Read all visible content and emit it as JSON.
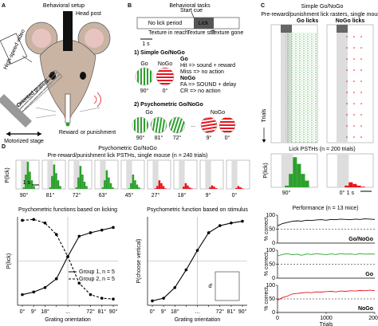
{
  "panel_a": {
    "label": "A",
    "title": "Behavioral setup",
    "head_post": "Head post",
    "video": "High-speed video",
    "grating": "Oriented grating, 90°",
    "stage": "Motorized stage",
    "reward": "Reward",
    "or": "or",
    "punishment": "punishment"
  },
  "panel_b": {
    "label": "B",
    "title": "Behavioral tasks",
    "start_cue": "Start cue",
    "no_lick": "No lick period",
    "lick": "Lick",
    "texture_reach": "Texture in reach",
    "texture_still": "Texture still",
    "texture_gone": "Texture gone",
    "scale": "1 s",
    "task1": "1) Simple Go/NoGo",
    "go": "Go",
    "nogo": "NoGo",
    "hit": "Hit => sound + reward",
    "miss": "Miss => no action",
    "fa": "FA => SOUND + delay",
    "cr": "CR => no action",
    "go_angle": "90°",
    "nogo_angle": "0°",
    "task2": "2) Psychometric Go/NoGo",
    "task2_go_angles": [
      "90°",
      "81°",
      "72°"
    ],
    "ellipsis": "...",
    "task2_nogo_angles": [
      "9°",
      "0°"
    ]
  },
  "panel_c": {
    "label": "C",
    "title": "Simple Go/NoGo",
    "subtitle": "Pre-reward/punishment lick rasters, single mouse",
    "go_licks": "Go licks",
    "nogo_licks": "NoGo licks",
    "trials": "Trials",
    "psth_title": "Lick PSTHs (n = 200 trials)",
    "psth_ylabel": "P(lick)",
    "go_angle": "90°",
    "nogo_angle": "0°",
    "scale": "1 s",
    "psth_ylim": [
      0,
      1
    ],
    "psths": [
      {
        "color": "#2ca02c",
        "values": [
          0,
          0,
          0.05,
          0.4,
          0.9,
          0.7,
          0.4,
          0.2
        ]
      },
      {
        "color": "#e8141c",
        "values": [
          0,
          0,
          0,
          0.05,
          0.15,
          0.1,
          0.05,
          0.02
        ]
      }
    ],
    "performance_title": "Performance (n = 13 mice)"
  },
  "panel_d": {
    "label": "D",
    "title": "Psychometric Go/NoGo",
    "subtitle": "Pre-reward/punishment lick PSTHs, single mouse (n = 240 trials)",
    "ylabel": "P(lick)",
    "scale": "1 s",
    "psth_ylim": [
      0,
      1
    ],
    "psths": [
      {
        "angle": "90°",
        "color": "#2ca02c",
        "values": [
          0,
          0,
          0.05,
          0.5,
          0.95,
          0.6,
          0.3,
          0.1
        ]
      },
      {
        "angle": "81°",
        "color": "#2ca02c",
        "values": [
          0,
          0,
          0.05,
          0.45,
          0.85,
          0.55,
          0.3,
          0.1
        ]
      },
      {
        "angle": "72°",
        "color": "#2ca02c",
        "values": [
          0,
          0,
          0.05,
          0.4,
          0.8,
          0.5,
          0.25,
          0.1
        ]
      },
      {
        "angle": "63°",
        "color": "#2ca02c",
        "values": [
          0,
          0,
          0.05,
          0.3,
          0.65,
          0.4,
          0.2,
          0.05
        ]
      },
      {
        "angle": "45°",
        "color": "#2ca02c",
        "values": [
          0,
          0,
          0.02,
          0.2,
          0.5,
          0.3,
          0.15,
          0.05
        ]
      },
      {
        "angle": "27°",
        "color": "#e8141c",
        "values": [
          0,
          0,
          0.02,
          0.1,
          0.3,
          0.2,
          0.1,
          0.02
        ]
      },
      {
        "angle": "18°",
        "color": "#e8141c",
        "values": [
          0,
          0,
          0,
          0.08,
          0.2,
          0.12,
          0.05,
          0.02
        ]
      },
      {
        "angle": "9°",
        "color": "#e8141c",
        "values": [
          0,
          0,
          0,
          0.05,
          0.12,
          0.08,
          0.03,
          0
        ]
      },
      {
        "angle": "0°",
        "color": "#e8141c",
        "values": [
          0,
          0,
          0,
          0.03,
          0.1,
          0.06,
          0.02,
          0
        ]
      }
    ]
  },
  "chart_data": [
    {
      "type": "line",
      "title": "Psychometric functions based on licking",
      "ylabel": "P(lick)",
      "xlabel": "Grating orientation",
      "categories": [
        "0°",
        "9°",
        "18°",
        null,
        "...",
        null,
        "72°",
        "81°",
        "90°"
      ],
      "ylim": [
        0,
        1
      ],
      "legend": "lower right",
      "series": [
        {
          "name": "Group 1, n = 5",
          "color": "#000000",
          "line_style": "solid",
          "values": [
            0.12,
            0.15,
            0.2,
            0.3,
            0.55,
            0.78,
            0.82,
            0.85,
            0.88
          ]
        },
        {
          "name": "Group 2, n = 5",
          "color": "#000000",
          "line_style": "dashed",
          "values": [
            0.96,
            0.97,
            0.93,
            0.8,
            0.55,
            0.25,
            0.12,
            0.08,
            0.07
          ]
        }
      ]
    },
    {
      "type": "line",
      "title": "Psychometric function based on stimulus",
      "ylabel": "P(choose vertical)",
      "xlabel": "Grating orientation",
      "categories": [
        "0°",
        "9°",
        "18°",
        null,
        "...",
        null,
        "72°",
        "81°",
        "90°"
      ],
      "ylim": [
        0,
        1
      ],
      "inset_ylabel": "d'",
      "series": [
        {
          "color": "#000000",
          "line_style": "solid",
          "values": [
            0.05,
            0.08,
            0.2,
            0.4,
            0.62,
            0.82,
            0.9,
            0.93,
            0.95
          ]
        }
      ]
    },
    {
      "type": "line",
      "ylabel": "% correct",
      "xlim": [
        0,
        2000
      ],
      "ylim": [
        0,
        100
      ],
      "yticks": [
        0,
        50,
        100
      ],
      "x": [
        0,
        100,
        200,
        300,
        400,
        500,
        600,
        700,
        800,
        900,
        1000,
        1100,
        1200,
        1300,
        1400,
        1500,
        1600,
        1700,
        1800,
        1900,
        2000
      ],
      "series": [
        {
          "name": "Go/NoGo",
          "color": "#000000",
          "values": [
            62,
            70,
            74,
            78,
            80,
            79,
            82,
            81,
            83,
            84,
            82,
            85,
            84,
            86,
            85,
            84,
            86,
            85,
            87,
            86,
            85
          ]
        }
      ]
    },
    {
      "type": "line",
      "ylabel": "% correct",
      "xlim": [
        0,
        2000
      ],
      "ylim": [
        0,
        100
      ],
      "yticks": [
        0,
        50,
        100
      ],
      "x": [
        0,
        100,
        200,
        300,
        400,
        500,
        600,
        700,
        800,
        900,
        1000,
        1100,
        1200,
        1300,
        1400,
        1500,
        1600,
        1700,
        1800,
        1900,
        2000
      ],
      "series": [
        {
          "name": "Go",
          "color": "#2ca02c",
          "values": [
            80,
            85,
            88,
            84,
            86,
            82,
            87,
            85,
            88,
            86,
            84,
            87,
            85,
            88,
            86,
            87,
            85,
            88,
            86,
            87,
            86
          ]
        }
      ]
    },
    {
      "type": "line",
      "ylabel": "% correct",
      "xlabel": "Trials",
      "xlim": [
        0,
        2000
      ],
      "ylim": [
        0,
        100
      ],
      "yticks": [
        0,
        50,
        100
      ],
      "xticks": [
        0,
        1000,
        2000
      ],
      "x": [
        0,
        100,
        200,
        300,
        400,
        500,
        600,
        700,
        800,
        900,
        1000,
        1100,
        1200,
        1300,
        1400,
        1500,
        1600,
        1700,
        1800,
        1900,
        2000
      ],
      "series": [
        {
          "name": "NoGo",
          "color": "#e8141c",
          "values": [
            45,
            55,
            60,
            68,
            70,
            72,
            74,
            73,
            76,
            75,
            77,
            78,
            76,
            79,
            78,
            80,
            79,
            81,
            80,
            82,
            80
          ]
        }
      ]
    }
  ]
}
